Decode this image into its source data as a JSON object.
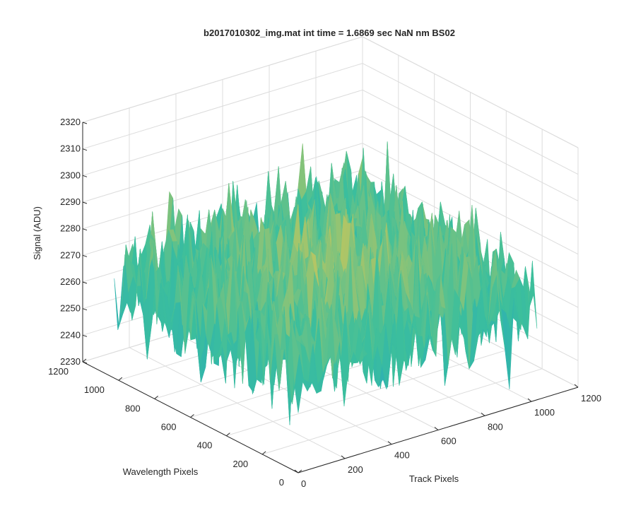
{
  "chart_data": {
    "type": "surface",
    "title": "b2017010302_img.mat int time = 1.6869 sec  NaN nm BS02",
    "xlabel": "Track Pixels",
    "ylabel": "Wavelength Pixels",
    "zlabel": "Signal (ADU)",
    "xlim": [
      0,
      1200
    ],
    "ylim": [
      0,
      1200
    ],
    "zlim": [
      2230,
      2320
    ],
    "xticks": [
      "0",
      "200",
      "400",
      "600",
      "800",
      "1000",
      "1200"
    ],
    "yticks": [
      "0",
      "200",
      "400",
      "600",
      "800",
      "1000",
      "1200"
    ],
    "zticks": [
      "2230",
      "2240",
      "2250",
      "2260",
      "2270",
      "2280",
      "2290",
      "2300",
      "2310",
      "2320"
    ],
    "grid": true,
    "colormap": "parula",
    "colors": {
      "low": "#1fa3c9",
      "mid": "#3cbf9c",
      "high": "#e3c84e"
    },
    "surface": {
      "x_range": [
        0,
        1024
      ],
      "y_range": [
        0,
        1024
      ],
      "mean_signal": 2268,
      "noise_min": 2233,
      "noise_max": 2303,
      "center_peak": 2280
    }
  }
}
